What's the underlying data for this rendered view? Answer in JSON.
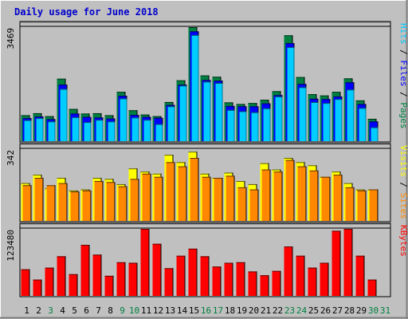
{
  "title": "Daily usage for June 2018",
  "colors": {
    "background": "#C0C0C0",
    "hits": "#00CCFF",
    "hits_shade": "#007799",
    "files": "#0000FF",
    "pages": "#008040",
    "visits": "#FFFF00",
    "sites": "#FF8800",
    "kbytes": "#FF0000",
    "weekend_label": "#008040"
  },
  "chart_data": [
    {
      "type": "bar",
      "panel": "requests",
      "ylim": [
        0,
        3469
      ],
      "y_tick_label": "3469",
      "legend": [
        "Pages",
        "Files",
        "Hits"
      ],
      "categories": [
        "1",
        "2",
        "3",
        "4",
        "5",
        "6",
        "7",
        "8",
        "9",
        "10",
        "11",
        "12",
        "13",
        "14",
        "15",
        "16",
        "17",
        "18",
        "19",
        "20",
        "21",
        "22",
        "23",
        "24",
        "25",
        "26",
        "27",
        "28",
        "29",
        "30"
      ],
      "series": [
        {
          "name": "Pages",
          "values": [
            790,
            850,
            760,
            1900,
            980,
            840,
            850,
            790,
            1500,
            940,
            810,
            760,
            1190,
            1850,
            3469,
            2000,
            1960,
            1180,
            1130,
            1160,
            1260,
            1520,
            3220,
            1950,
            1430,
            1390,
            1500,
            1910,
            1240,
            680
          ]
        },
        {
          "name": "Files",
          "values": [
            700,
            750,
            670,
            1720,
            840,
            740,
            720,
            690,
            1380,
            800,
            740,
            710,
            1100,
            1720,
            3340,
            1860,
            1840,
            1070,
            1060,
            1060,
            1150,
            1400,
            2980,
            1740,
            1290,
            1280,
            1360,
            1790,
            1130,
            600
          ]
        },
        {
          "name": "Hits",
          "values": [
            640,
            700,
            600,
            1590,
            730,
            580,
            650,
            600,
            1300,
            720,
            650,
            520,
            1060,
            1690,
            3230,
            1810,
            1770,
            950,
            910,
            880,
            1000,
            1360,
            2860,
            1640,
            1190,
            1160,
            1280,
            1570,
            1010,
            420
          ]
        }
      ]
    },
    {
      "type": "bar",
      "panel": "visitors",
      "ylim": [
        0,
        342
      ],
      "y_tick_label": "342",
      "legend": [
        "Sites",
        "Visits"
      ],
      "categories": [
        "1",
        "2",
        "3",
        "4",
        "5",
        "6",
        "7",
        "8",
        "9",
        "10",
        "11",
        "12",
        "13",
        "14",
        "15",
        "16",
        "17",
        "18",
        "19",
        "20",
        "21",
        "22",
        "23",
        "24",
        "25",
        "26",
        "27",
        "28",
        "29",
        "30"
      ],
      "series": [
        {
          "name": "Visits",
          "values": [
            180,
            220,
            155,
            205,
            145,
            150,
            205,
            200,
            175,
            250,
            235,
            225,
            315,
            280,
            330,
            225,
            205,
            230,
            190,
            175,
            275,
            245,
            300,
            280,
            265,
            210,
            235,
            180,
            150,
            150
          ]
        },
        {
          "name": "Sites",
          "values": [
            170,
            205,
            170,
            180,
            140,
            145,
            190,
            185,
            165,
            200,
            225,
            210,
            280,
            260,
            300,
            210,
            205,
            215,
            160,
            150,
            245,
            235,
            290,
            260,
            240,
            210,
            220,
            160,
            145,
            150
          ]
        }
      ]
    },
    {
      "type": "bar",
      "panel": "kbytes",
      "ylim": [
        0,
        123480
      ],
      "y_tick_label": "123480",
      "legend": [
        "KBytes"
      ],
      "categories": [
        "1",
        "2",
        "3",
        "4",
        "5",
        "6",
        "7",
        "8",
        "9",
        "10",
        "11",
        "12",
        "13",
        "14",
        "15",
        "16",
        "17",
        "18",
        "19",
        "20",
        "21",
        "22",
        "23",
        "24",
        "25",
        "26",
        "27",
        "28",
        "29",
        "30"
      ],
      "series": [
        {
          "name": "KBytes",
          "values": [
            49000,
            30000,
            52000,
            73000,
            40000,
            94000,
            76000,
            37000,
            62000,
            61000,
            123480,
            96000,
            51000,
            74000,
            87000,
            73000,
            54000,
            61000,
            62000,
            45000,
            38000,
            46000,
            91000,
            74000,
            52000,
            61000,
            120000,
            123480,
            74000,
            30000
          ]
        }
      ]
    }
  ],
  "x_labels": [
    {
      "text": "1",
      "weekend": false
    },
    {
      "text": "2",
      "weekend": false
    },
    {
      "text": "3",
      "weekend": true
    },
    {
      "text": "4",
      "weekend": false
    },
    {
      "text": "5",
      "weekend": false
    },
    {
      "text": "6",
      "weekend": false
    },
    {
      "text": "7",
      "weekend": false
    },
    {
      "text": "8",
      "weekend": false
    },
    {
      "text": "9",
      "weekend": true
    },
    {
      "text": "10",
      "weekend": true
    },
    {
      "text": "11",
      "weekend": false
    },
    {
      "text": "12",
      "weekend": false
    },
    {
      "text": "13",
      "weekend": false
    },
    {
      "text": "14",
      "weekend": false
    },
    {
      "text": "15",
      "weekend": false
    },
    {
      "text": "16",
      "weekend": true
    },
    {
      "text": "17",
      "weekend": true
    },
    {
      "text": "18",
      "weekend": false
    },
    {
      "text": "19",
      "weekend": false
    },
    {
      "text": "20",
      "weekend": false
    },
    {
      "text": "21",
      "weekend": false
    },
    {
      "text": "22",
      "weekend": false
    },
    {
      "text": "23",
      "weekend": true
    },
    {
      "text": "24",
      "weekend": true
    },
    {
      "text": "25",
      "weekend": false
    },
    {
      "text": "26",
      "weekend": false
    },
    {
      "text": "27",
      "weekend": false
    },
    {
      "text": "28",
      "weekend": false
    },
    {
      "text": "29",
      "weekend": false
    },
    {
      "text": "30",
      "weekend": true
    },
    {
      "text": "31",
      "weekend": true
    }
  ]
}
